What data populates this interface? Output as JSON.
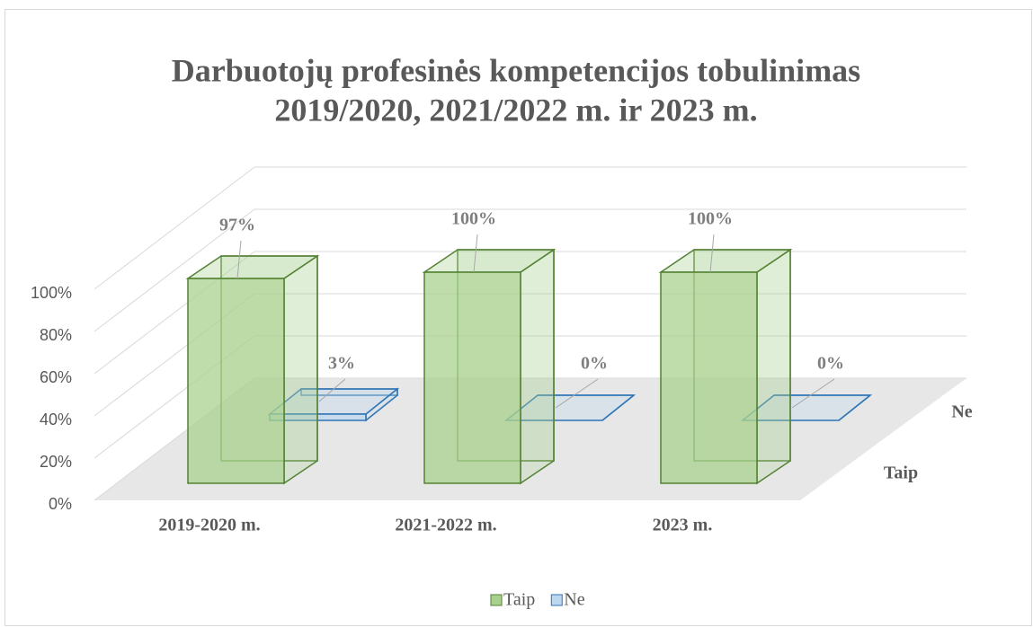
{
  "chart_data": {
    "type": "bar3d",
    "title": [
      "Darbuotojų profesinės kompetencijos tobulinimas",
      "2019/2020, 2021/2022 m. ir 2023 m."
    ],
    "categories": [
      "2019-2020 m.",
      "2021-2022 m.",
      "2023 m."
    ],
    "series": [
      {
        "name": "Taip",
        "color": "#a9d18e",
        "values": [
          97,
          100,
          100
        ],
        "value_labels": [
          "97%",
          "100%",
          "100%"
        ]
      },
      {
        "name": "Ne",
        "color": "#bdd7ee",
        "values": [
          3,
          0,
          0
        ],
        "value_labels": [
          "3%",
          "0%",
          "0%"
        ]
      }
    ],
    "ylim": [
      0,
      100
    ],
    "yticks": [
      {
        "value": 0,
        "label": "0%"
      },
      {
        "value": 20,
        "label": "20%"
      },
      {
        "value": 40,
        "label": "40%"
      },
      {
        "value": 60,
        "label": "60%"
      },
      {
        "value": 80,
        "label": "80%"
      },
      {
        "value": 100,
        "label": "100%"
      }
    ],
    "grid": true,
    "legend": "bottom"
  }
}
